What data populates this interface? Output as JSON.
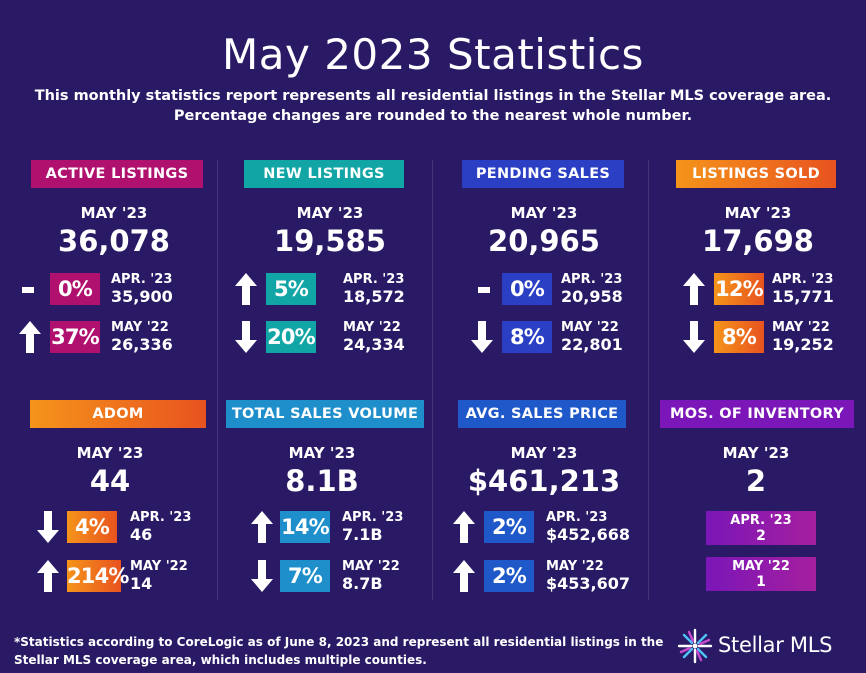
{
  "header": {
    "title": "May 2023 Statistics",
    "subtitle_line1": "This monthly statistics report represents all residential listings in the Stellar MLS coverage area.",
    "subtitle_line2": "Percentage changes are rounded to the nearest whole number."
  },
  "cards": {
    "active_listings": {
      "label": "ACTIVE LISTINGS",
      "period": "MAY '23",
      "value": "36,078",
      "rows": [
        {
          "trend": "flat",
          "pct": "0%",
          "label": "APR. '23",
          "value": "35,900"
        },
        {
          "trend": "up",
          "pct": "37%",
          "label": "MAY '22",
          "value": "26,336"
        }
      ]
    },
    "new_listings": {
      "label": "NEW LISTINGS",
      "period": "MAY '23",
      "value": "19,585",
      "rows": [
        {
          "trend": "up",
          "pct": "5%",
          "label": "APR. '23",
          "value": "18,572"
        },
        {
          "trend": "down",
          "pct": "20%",
          "label": "MAY '22",
          "value": "24,334"
        }
      ]
    },
    "pending_sales": {
      "label": "PENDING SALES",
      "period": "MAY '23",
      "value": "20,965",
      "rows": [
        {
          "trend": "flat",
          "pct": "0%",
          "label": "APR. '23",
          "value": "20,958"
        },
        {
          "trend": "down",
          "pct": "8%",
          "label": "MAY '22",
          "value": "22,801"
        }
      ]
    },
    "listings_sold": {
      "label": "LISTINGS SOLD",
      "period": "MAY '23",
      "value": "17,698",
      "rows": [
        {
          "trend": "up",
          "pct": "12%",
          "label": "APR. '23",
          "value": "15,771"
        },
        {
          "trend": "down",
          "pct": "8%",
          "label": "MAY '22",
          "value": "19,252"
        }
      ]
    },
    "adom": {
      "label": "ADOM",
      "period": "MAY '23",
      "value": "44",
      "rows": [
        {
          "trend": "down",
          "pct": "4%",
          "label": "APR. '23",
          "value": "46"
        },
        {
          "trend": "up",
          "pct": "214%",
          "label": "MAY '22",
          "value": "14"
        }
      ]
    },
    "total_sales_volume": {
      "label": "TOTAL SALES VOLUME",
      "period": "MAY '23",
      "value": "8.1B",
      "rows": [
        {
          "trend": "up",
          "pct": "14%",
          "label": "APR. '23",
          "value": "7.1B"
        },
        {
          "trend": "down",
          "pct": "7%",
          "label": "MAY '22",
          "value": "8.7B"
        }
      ]
    },
    "avg_sales_price": {
      "label": "AVG. SALES PRICE",
      "period": "MAY '23",
      "value": "$461,213",
      "rows": [
        {
          "trend": "up",
          "pct": "2%",
          "label": "APR. '23",
          "value": "$452,668"
        },
        {
          "trend": "up",
          "pct": "2%",
          "label": "MAY '22",
          "value": "$453,607"
        }
      ]
    },
    "mos_inventory": {
      "label": "MOS. OF INVENTORY",
      "period": "MAY '23",
      "value": "2",
      "rows": [
        {
          "label": "APR. '23",
          "value": "2"
        },
        {
          "label": "MAY '22",
          "value": "1"
        }
      ]
    }
  },
  "footer": {
    "note_line1": "*Statistics according to CoreLogic as of June 8, 2023 and represent all residential listings in the",
    "note_line2": "Stellar MLS coverage area, which includes multiple counties.",
    "logo_text": "Stellar MLS",
    "logo_icon": "star-burst-icon"
  },
  "colors": {
    "background": "#2a1a66",
    "magenta": "#b0106e",
    "teal": "#12a5a5",
    "blue": "#2b3fc4",
    "orange_start": "#f58a16",
    "orange_end": "#e85a1e",
    "cyan_blue": "#1f8fcc",
    "royal_blue": "#1f58c8",
    "purple": "#7b16b8"
  }
}
